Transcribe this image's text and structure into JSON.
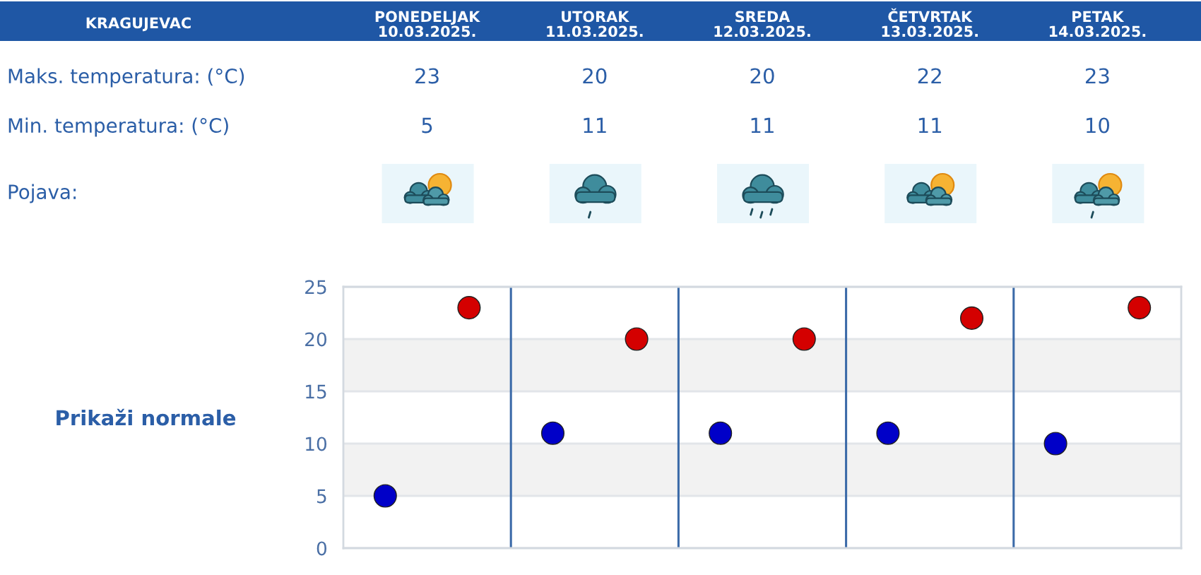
{
  "chart_data": {
    "type": "scatter",
    "title": "KRAGUJEVAC",
    "categories": [
      null,
      null,
      null,
      null,
      null
    ],
    "series": [
      {
        "color": "#d40000",
        "values": [
          23,
          20,
          20,
          22,
          23
        ]
      },
      {
        "color": "#0000c8",
        "values": [
          5,
          11,
          11,
          11,
          10
        ]
      }
    ],
    "ylim": [
      0,
      25
    ],
    "yticks": [
      0,
      5,
      10,
      15,
      20,
      25
    ],
    "grid": true,
    "marker": "circle",
    "data_labels": true,
    "bands": [
      {
        "axis": "y",
        "from": 5,
        "to": 10,
        "color": "#f2f2f2"
      },
      {
        "axis": "y",
        "from": 15,
        "to": 20,
        "color": "#f2f2f2"
      }
    ],
    "annotations": [
      "PONEDELJAK\n10.03.2025.",
      "UTORAK\n11.03.2025.",
      "SREDA\n12.03.2025.",
      "ČETVRTAK\n13.03.2025.",
      "PETAK\n14.03.2025.",
      "Maks. temperatura: (°C)",
      "Min. temperatura: (°C)",
      "Pojava:",
      "Prikaži normale"
    ]
  }
}
